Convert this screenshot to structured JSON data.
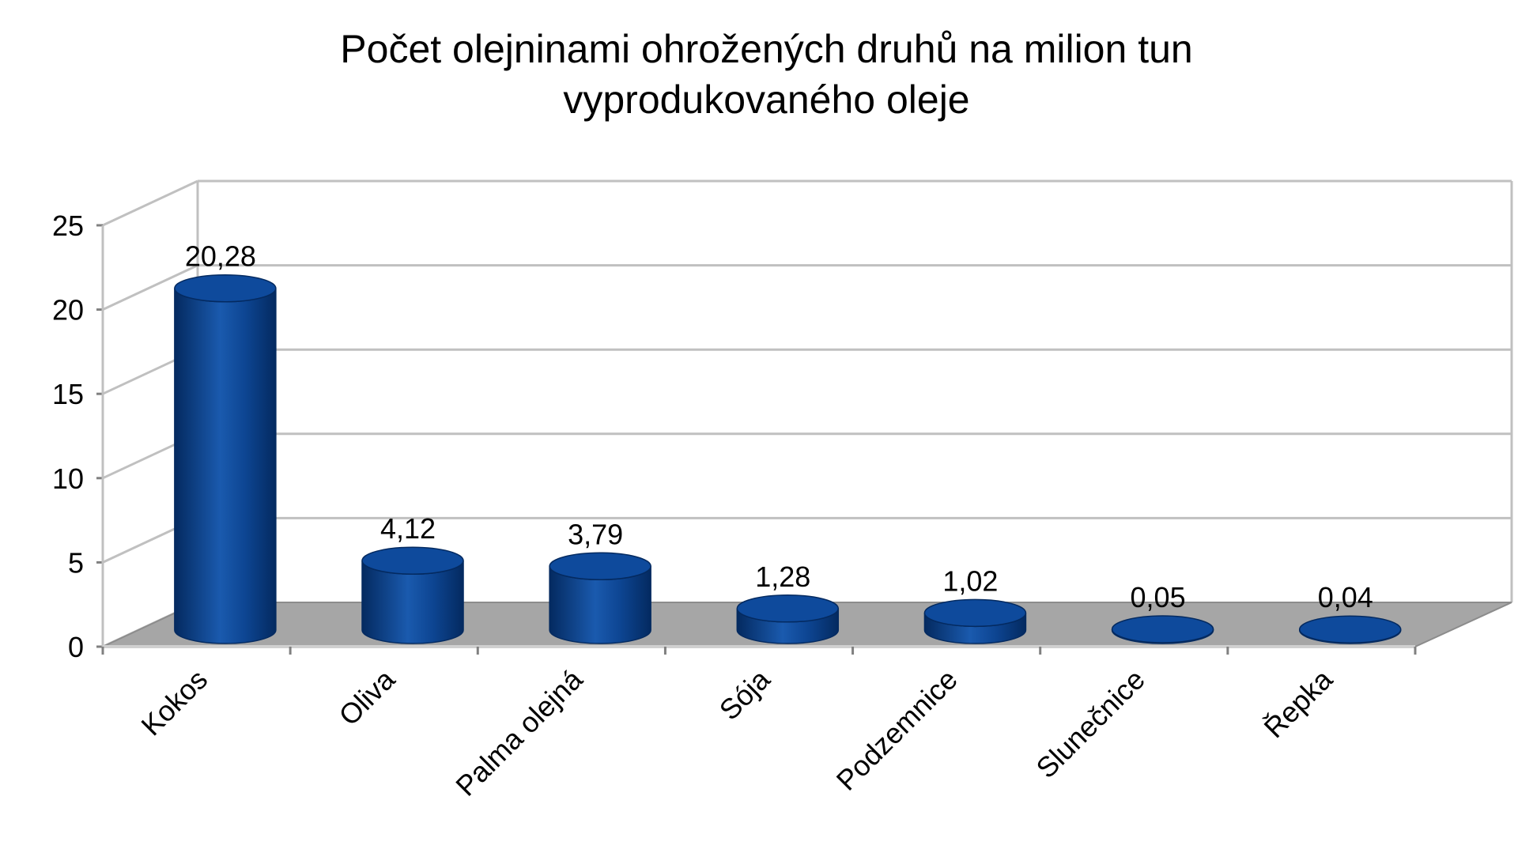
{
  "chart_data": {
    "type": "bar",
    "title_line1": "Počet olejninami ohrožených druhů na milion tun",
    "title_line2": "vyprodukovaného oleje",
    "categories": [
      "Kokos",
      "Oliva",
      "Palma olejná",
      "Sója",
      "Podzemnice",
      "Slunečnice",
      "Řepka"
    ],
    "values": [
      20.28,
      4.12,
      3.79,
      1.28,
      1.02,
      0.05,
      0.04
    ],
    "value_labels": [
      "20,28",
      "4,12",
      "3,79",
      "1,28",
      "1,02",
      "0,05",
      "0,04"
    ],
    "y_ticks": [
      "0",
      "5",
      "10",
      "15",
      "20",
      "25"
    ],
    "ylim": [
      0,
      25
    ],
    "grid": true,
    "legend": "none",
    "colors": {
      "bar": "#0a3d86",
      "bar_light": "#2a6cc0",
      "bar_dark": "#042a60",
      "floor": "#a6a6a6",
      "grid": "#c0c0c0"
    }
  }
}
